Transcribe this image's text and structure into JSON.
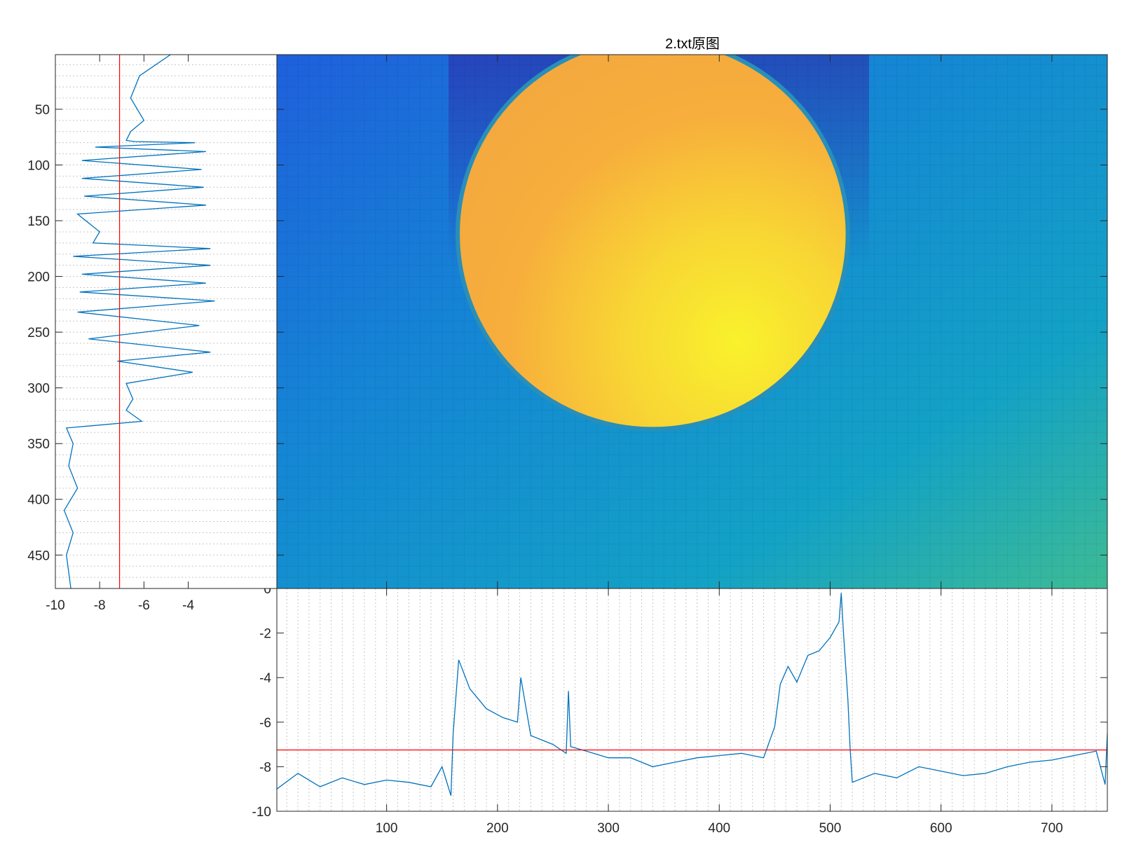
{
  "figure": {
    "title": "2.txt原图"
  },
  "chart_data": [
    {
      "type": "heatmap",
      "name": "image",
      "x_range": [
        1,
        750
      ],
      "y_range": [
        1,
        480
      ],
      "y_direction": "reverse",
      "colormap": "parula",
      "background_color": "#1580d0",
      "disc": {
        "center_x": 340,
        "center_y": 162,
        "radius": 174,
        "color": "#f6b83a"
      },
      "x_ticks": [
        100,
        200,
        300,
        400,
        500,
        600,
        700
      ],
      "y_ticks": [
        50,
        100,
        150,
        200,
        250,
        300,
        350,
        400,
        450
      ]
    },
    {
      "type": "line",
      "name": "row-profile",
      "xlim": [
        1,
        750
      ],
      "ylim": [
        -10,
        0
      ],
      "x_ticks": [
        100,
        200,
        300,
        400,
        500,
        600,
        700
      ],
      "y_ticks": [
        0,
        -2,
        -4,
        -6,
        -8,
        -10
      ],
      "grid": "x-minor",
      "series": [
        {
          "color": "#0072bd",
          "x": [
            1,
            20,
            40,
            60,
            80,
            100,
            120,
            140,
            150,
            158,
            160,
            165,
            175,
            190,
            205,
            218,
            221,
            230,
            250,
            262,
            264,
            266,
            280,
            300,
            320,
            340,
            360,
            380,
            400,
            420,
            440,
            450,
            455,
            462,
            470,
            480,
            490,
            500,
            508,
            510,
            512,
            516,
            518,
            520,
            540,
            560,
            580,
            600,
            620,
            640,
            660,
            680,
            700,
            720,
            740,
            748,
            750
          ],
          "y": [
            -9.0,
            -8.3,
            -8.9,
            -8.5,
            -8.8,
            -8.6,
            -8.7,
            -8.9,
            -8.0,
            -9.3,
            -6.5,
            -3.2,
            -4.5,
            -5.4,
            -5.8,
            -6.0,
            -4.0,
            -6.6,
            -7.0,
            -7.4,
            -4.6,
            -7.1,
            -7.3,
            -7.6,
            -7.6,
            -8.0,
            -7.8,
            -7.6,
            -7.5,
            -7.4,
            -7.6,
            -6.2,
            -4.3,
            -3.5,
            -4.2,
            -3.0,
            -2.8,
            -2.2,
            -1.5,
            -0.2,
            -2.0,
            -5.0,
            -7.2,
            -8.7,
            -8.3,
            -8.5,
            -8.0,
            -8.2,
            -8.4,
            -8.3,
            -8.0,
            -7.8,
            -7.7,
            -7.5,
            -7.3,
            -8.8,
            -6.5
          ]
        },
        {
          "color": "#ff0000",
          "x": [
            1,
            750
          ],
          "y": [
            -7.25,
            -7.25
          ]
        }
      ]
    },
    {
      "type": "line",
      "name": "column-profile",
      "xlim": [
        -10,
        0
      ],
      "ylim": [
        1,
        480
      ],
      "y_direction": "reverse",
      "x_ticks": [
        -10,
        -8,
        -6,
        -4
      ],
      "y_ticks": [
        50,
        100,
        150,
        200,
        250,
        300,
        350,
        400,
        450
      ],
      "grid": "y-minor",
      "series": [
        {
          "color": "#0072bd",
          "x": [
            -4.8,
            -6.2,
            -6.6,
            -6.0,
            -6.6,
            -6.8,
            -6.4,
            -3.7,
            -8.2,
            -3.2,
            -8.8,
            -3.4,
            -8.8,
            -3.3,
            -8.7,
            -3.2,
            -9.0,
            -8.0,
            -8.3,
            -3.0,
            -9.2,
            -3.0,
            -8.8,
            -3.2,
            -8.9,
            -2.8,
            -9.0,
            -3.5,
            -8.5,
            -3.0,
            -7.2,
            -3.8,
            -6.8,
            -6.5,
            -6.8,
            -6.1,
            -9.5,
            -9.2,
            -9.4,
            -9.0,
            -9.6,
            -9.2,
            -9.5,
            -9.3
          ],
          "y": [
            1,
            20,
            40,
            60,
            70,
            78,
            79,
            80,
            84,
            88,
            96,
            104,
            112,
            120,
            128,
            136,
            144,
            160,
            170,
            175,
            182,
            190,
            198,
            206,
            214,
            222,
            232,
            244,
            256,
            268,
            276,
            286,
            296,
            310,
            320,
            330,
            336,
            350,
            370,
            390,
            410,
            430,
            450,
            480
          ]
        },
        {
          "color": "#ff0000",
          "x": [
            -7.1,
            -7.1
          ],
          "y": [
            1,
            480
          ]
        }
      ]
    }
  ]
}
